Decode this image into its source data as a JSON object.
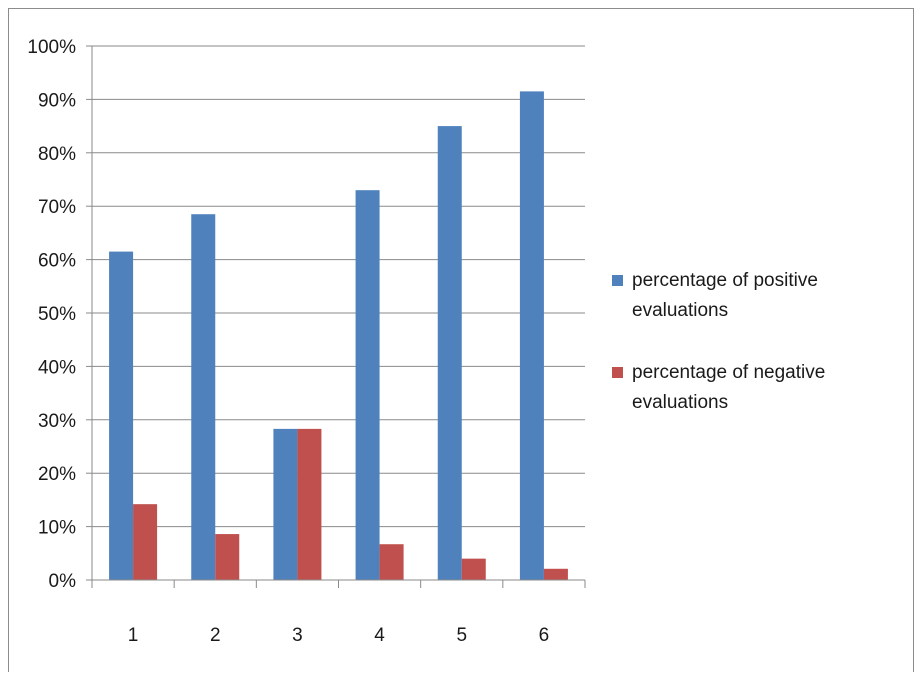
{
  "chart_data": {
    "type": "bar",
    "categories": [
      "1",
      "2",
      "3",
      "4",
      "5",
      "6"
    ],
    "series": [
      {
        "name": "percentage of positive evaluations",
        "color": "#4f81bd",
        "values": [
          61.5,
          68.5,
          28.3,
          73.0,
          85.0,
          91.5
        ]
      },
      {
        "name": "percentage of negative evaluations",
        "color": "#c0504d",
        "values": [
          14.2,
          8.6,
          28.3,
          6.7,
          4.0,
          2.1
        ]
      }
    ],
    "yticks": [
      "0%",
      "10%",
      "20%",
      "30%",
      "40%",
      "50%",
      "60%",
      "70%",
      "80%",
      "90%",
      "100%"
    ],
    "ylim": [
      0,
      100
    ],
    "grid": true,
    "legend_position": "right"
  }
}
